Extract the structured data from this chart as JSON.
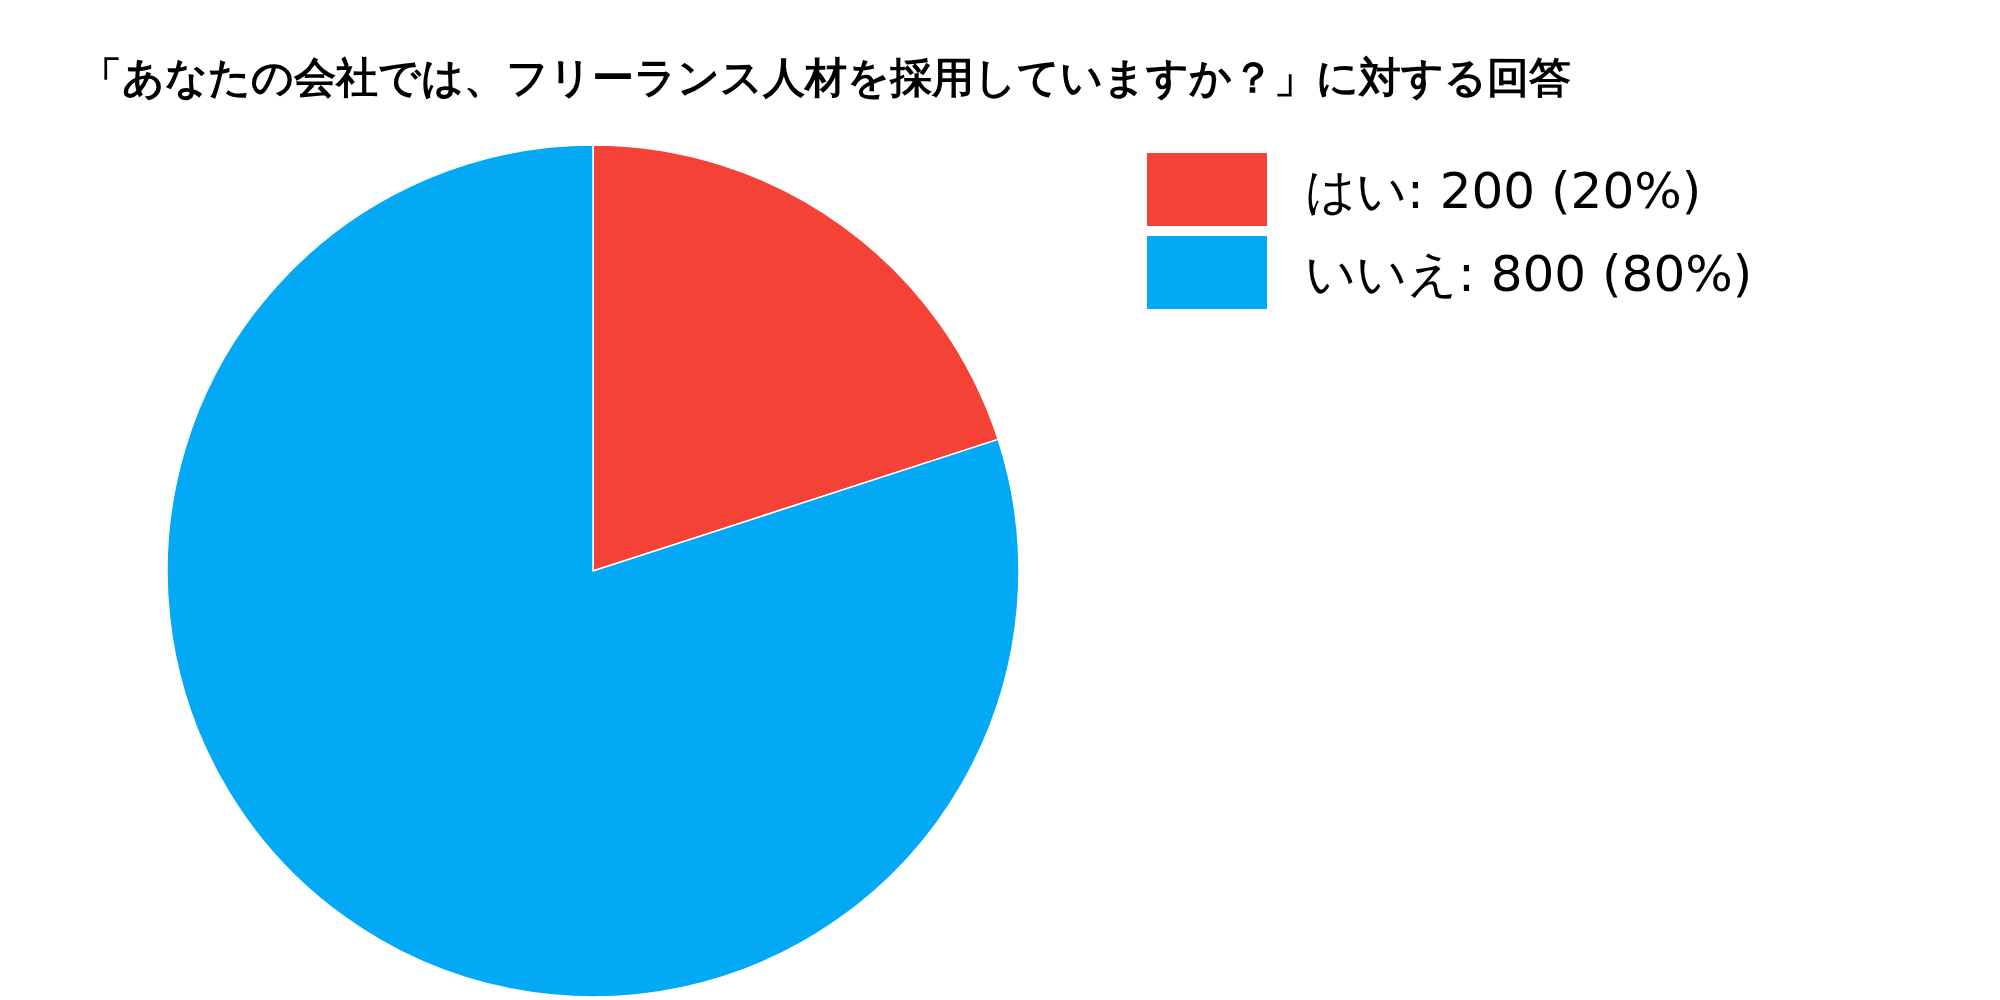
{
  "chart_data": {
    "type": "pie",
    "title": "「あなたの会社では、フリーランス人材を採用していますか？」に対する回答",
    "categories": [
      "はい",
      "いいえ"
    ],
    "values": [
      200,
      800
    ],
    "value_labels": [
      "200 (20%)",
      "800 (80%)"
    ],
    "colors": [
      "#f44336",
      "#03a9f4"
    ],
    "legend": "top right"
  }
}
